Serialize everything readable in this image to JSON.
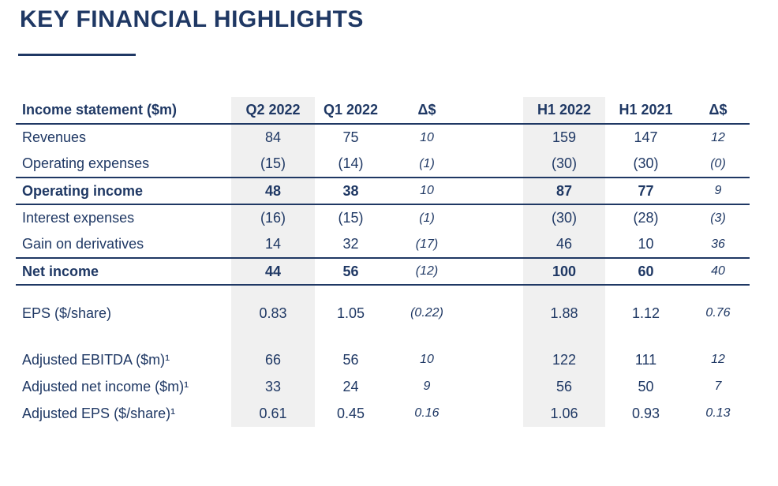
{
  "title": "KEY FINANCIAL HIGHLIGHTS",
  "colors": {
    "text_navy": "#1f3864",
    "highlight_gray": "#f0f0f0",
    "background": "#ffffff"
  },
  "table": {
    "header": {
      "label": "Income statement ($m)",
      "columns": [
        "Q2 2022",
        "Q1 2022",
        "Δ$",
        "H1 2022",
        "H1 2021",
        "Δ$"
      ]
    },
    "rows": [
      {
        "label": "Revenues",
        "values": [
          "84",
          "75",
          "10",
          "159",
          "147",
          "12"
        ]
      },
      {
        "label": "Operating expenses",
        "values": [
          "(15)",
          "(14)",
          "(1)",
          "(30)",
          "(30)",
          "(0)"
        ]
      },
      {
        "label": "Operating income",
        "values": [
          "48",
          "38",
          "10",
          "87",
          "77",
          "9"
        ],
        "emphasis": true
      },
      {
        "label": "Interest expenses",
        "values": [
          "(16)",
          "(15)",
          "(1)",
          "(30)",
          "(28)",
          "(3)"
        ]
      },
      {
        "label": "Gain on derivatives",
        "values": [
          "14",
          "32",
          "(17)",
          "46",
          "10",
          "36"
        ]
      },
      {
        "label": "Net income",
        "values": [
          "44",
          "56",
          "(12)",
          "100",
          "60",
          "40"
        ],
        "emphasis": true
      },
      {
        "label": "EPS ($/share)",
        "values": [
          "0.83",
          "1.05",
          "(0.22)",
          "1.88",
          "1.12",
          "0.76"
        ]
      },
      {
        "label": "Adjusted EBITDA ($m)¹",
        "values": [
          "66",
          "56",
          "10",
          "122",
          "111",
          "12"
        ]
      },
      {
        "label": "Adjusted net income ($m)¹",
        "values": [
          "33",
          "24",
          "9",
          "56",
          "50",
          "7"
        ]
      },
      {
        "label": "Adjusted EPS ($/share)¹",
        "values": [
          "0.61",
          "0.45",
          "0.16",
          "1.06",
          "0.93",
          "0.13"
        ]
      }
    ]
  }
}
